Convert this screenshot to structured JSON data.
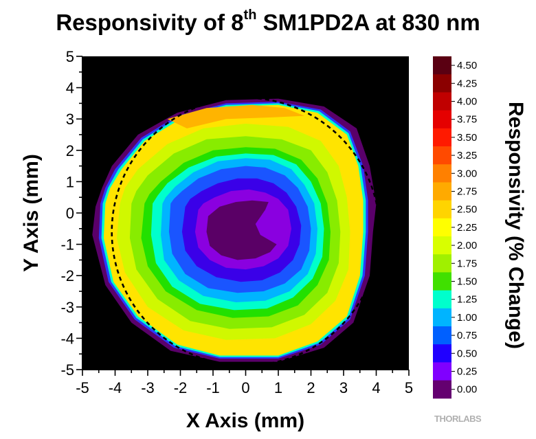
{
  "chart_data": {
    "type": "heatmap",
    "title": {
      "prefix": "Responsivity of 8",
      "sup": "th",
      "suffix": " SM1PD2A at 830 nm"
    },
    "xlabel": "X Axis (mm)",
    "ylabel": "Y Axis (mm)",
    "colorbar_label": "Responsivity (% Change)",
    "xlim": [
      -5,
      5
    ],
    "ylim": [
      -5,
      5
    ],
    "x_ticks": [
      "-5",
      "-4",
      "-3",
      "-2",
      "-1",
      "0",
      "1",
      "2",
      "3",
      "4",
      "5"
    ],
    "y_ticks": [
      "5",
      "4",
      "3",
      "2",
      "1",
      "0",
      "-1",
      "-2",
      "-3",
      "-4",
      "-5"
    ],
    "colorbar_ticks": [
      "4.50",
      "4.25",
      "4.00",
      "3.75",
      "3.50",
      "3.25",
      "3.00",
      "2.75",
      "2.50",
      "2.25",
      "2.00",
      "1.75",
      "1.50",
      "1.25",
      "1.00",
      "0.75",
      "0.50",
      "0.25",
      "0.00"
    ],
    "colorbar_colors": [
      "#5a0012",
      "#8b0000",
      "#c00000",
      "#e50000",
      "#ff1a00",
      "#ff4a00",
      "#ff8000",
      "#ffaa00",
      "#ffd400",
      "#ffff00",
      "#d8ff00",
      "#a0f000",
      "#40e000",
      "#00ffcc",
      "#00b4ff",
      "#0060ff",
      "#2000ff",
      "#8000ff",
      "#640070"
    ],
    "levels_mm": [
      {
        "value": 0.0,
        "color": "#5a006a",
        "points": [
          [
            -4.6,
            0.2
          ],
          [
            -4.7,
            -0.7
          ],
          [
            -4.3,
            -2.3
          ],
          [
            -3.5,
            -3.5
          ],
          [
            -2.3,
            -4.4
          ],
          [
            -0.8,
            -4.75
          ],
          [
            1.0,
            -4.75
          ],
          [
            2.4,
            -4.3
          ],
          [
            3.3,
            -3.5
          ],
          [
            3.8,
            -2.0
          ],
          [
            3.9,
            -0.6
          ],
          [
            4.0,
            0.3
          ],
          [
            3.8,
            1.5
          ],
          [
            3.4,
            2.7
          ],
          [
            2.4,
            3.4
          ],
          [
            1.0,
            3.65
          ],
          [
            -0.6,
            3.6
          ],
          [
            -2.1,
            3.2
          ],
          [
            -3.3,
            2.5
          ],
          [
            -4.1,
            1.5
          ],
          [
            -4.4,
            0.8
          ]
        ]
      },
      {
        "value": 0.5,
        "color": "#2a3aff",
        "points": [
          [
            -4.45,
            0.3
          ],
          [
            -4.5,
            -0.8
          ],
          [
            -4.2,
            -2.2
          ],
          [
            -3.4,
            -3.4
          ],
          [
            -2.2,
            -4.3
          ],
          [
            -0.8,
            -4.65
          ],
          [
            1.0,
            -4.65
          ],
          [
            2.3,
            -4.2
          ],
          [
            3.2,
            -3.4
          ],
          [
            3.65,
            -2.0
          ],
          [
            3.75,
            -0.6
          ],
          [
            3.75,
            0.4
          ],
          [
            3.6,
            1.5
          ],
          [
            3.2,
            2.6
          ],
          [
            2.3,
            3.3
          ],
          [
            1.0,
            3.55
          ],
          [
            -0.6,
            3.5
          ],
          [
            -2.1,
            3.1
          ],
          [
            -3.2,
            2.4
          ],
          [
            -4.0,
            1.4
          ],
          [
            -4.3,
            0.8
          ]
        ]
      },
      {
        "value": 1.25,
        "color": "#00ffcc",
        "points": [
          [
            -4.38,
            0.3
          ],
          [
            -4.42,
            -0.8
          ],
          [
            -4.12,
            -2.2
          ],
          [
            -3.35,
            -3.35
          ],
          [
            -2.15,
            -4.25
          ],
          [
            -0.8,
            -4.6
          ],
          [
            1.0,
            -4.6
          ],
          [
            2.25,
            -4.15
          ],
          [
            3.15,
            -3.35
          ],
          [
            3.58,
            -2.0
          ],
          [
            3.68,
            -0.6
          ],
          [
            3.68,
            0.4
          ],
          [
            3.52,
            1.5
          ],
          [
            3.15,
            2.55
          ],
          [
            2.25,
            3.25
          ],
          [
            1.0,
            3.5
          ],
          [
            -0.6,
            3.45
          ],
          [
            -2.05,
            3.05
          ],
          [
            -3.15,
            2.35
          ],
          [
            -3.9,
            1.4
          ],
          [
            -4.22,
            0.8
          ]
        ]
      },
      {
        "value": 2.25,
        "color": "#ffe400",
        "points": [
          [
            -4.3,
            0.3
          ],
          [
            -4.35,
            -0.8
          ],
          [
            -4.05,
            -2.2
          ],
          [
            -3.3,
            -3.3
          ],
          [
            -2.1,
            -4.2
          ],
          [
            -0.8,
            -4.55
          ],
          [
            1.0,
            -4.55
          ],
          [
            2.2,
            -4.1
          ],
          [
            3.1,
            -3.3
          ],
          [
            3.5,
            -2.0
          ],
          [
            3.6,
            -0.6
          ],
          [
            3.6,
            0.4
          ],
          [
            3.45,
            1.5
          ],
          [
            3.1,
            2.5
          ],
          [
            2.2,
            3.2
          ],
          [
            1.0,
            3.45
          ],
          [
            -0.6,
            3.4
          ],
          [
            -2.0,
            3.0
          ],
          [
            -3.1,
            2.3
          ],
          [
            -3.8,
            1.4
          ],
          [
            -4.15,
            0.8
          ]
        ]
      },
      {
        "value": 2.75,
        "color": "#ffb400",
        "points": [
          [
            -2.4,
            3.0
          ],
          [
            -1.2,
            3.35
          ],
          [
            0.2,
            3.45
          ],
          [
            1.2,
            3.35
          ],
          [
            1.8,
            3.1
          ],
          [
            0.8,
            3.05
          ],
          [
            -0.6,
            3.0
          ],
          [
            -1.8,
            2.7
          ]
        ]
      },
      {
        "value": 2.0,
        "color": "#d0f800",
        "points": [
          [
            -3.85,
            0.3
          ],
          [
            -3.95,
            -0.8
          ],
          [
            -3.7,
            -1.9
          ],
          [
            -3.0,
            -3.0
          ],
          [
            -1.9,
            -3.75
          ],
          [
            -0.6,
            -4.05
          ],
          [
            0.9,
            -4.0
          ],
          [
            2.0,
            -3.55
          ],
          [
            2.75,
            -2.8
          ],
          [
            3.15,
            -1.8
          ],
          [
            3.2,
            -0.6
          ],
          [
            3.1,
            0.5
          ],
          [
            2.85,
            1.5
          ],
          [
            2.3,
            2.3
          ],
          [
            1.3,
            2.75
          ],
          [
            0.0,
            2.85
          ],
          [
            -1.3,
            2.7
          ],
          [
            -2.4,
            2.2
          ],
          [
            -3.3,
            1.4
          ],
          [
            -3.7,
            0.8
          ]
        ]
      },
      {
        "value": 1.75,
        "color": "#88ec00",
        "points": [
          [
            -3.5,
            0.3
          ],
          [
            -3.55,
            -0.8
          ],
          [
            -3.35,
            -1.8
          ],
          [
            -2.7,
            -2.75
          ],
          [
            -1.7,
            -3.45
          ],
          [
            -0.5,
            -3.7
          ],
          [
            0.8,
            -3.65
          ],
          [
            1.8,
            -3.25
          ],
          [
            2.5,
            -2.55
          ],
          [
            2.85,
            -1.6
          ],
          [
            2.9,
            -0.6
          ],
          [
            2.8,
            0.4
          ],
          [
            2.5,
            1.3
          ],
          [
            2.0,
            2.0
          ],
          [
            1.1,
            2.35
          ],
          [
            0.0,
            2.45
          ],
          [
            -1.2,
            2.35
          ],
          [
            -2.2,
            1.9
          ],
          [
            -3.0,
            1.2
          ],
          [
            -3.35,
            0.7
          ]
        ]
      },
      {
        "value": 1.5,
        "color": "#22e000",
        "points": [
          [
            -3.1,
            0.3
          ],
          [
            -3.2,
            -0.8
          ],
          [
            -3.0,
            -1.7
          ],
          [
            -2.45,
            -2.5
          ],
          [
            -1.5,
            -3.1
          ],
          [
            -0.4,
            -3.35
          ],
          [
            0.7,
            -3.3
          ],
          [
            1.6,
            -2.95
          ],
          [
            2.2,
            -2.3
          ],
          [
            2.55,
            -1.5
          ],
          [
            2.6,
            -0.6
          ],
          [
            2.5,
            0.3
          ],
          [
            2.2,
            1.1
          ],
          [
            1.7,
            1.7
          ],
          [
            0.9,
            2.05
          ],
          [
            0.0,
            2.1
          ],
          [
            -1.0,
            2.0
          ],
          [
            -1.9,
            1.6
          ],
          [
            -2.6,
            1.0
          ],
          [
            -2.95,
            0.6
          ]
        ]
      },
      {
        "value": 1.25,
        "color": "#00ffcc",
        "points": [
          [
            -2.85,
            0.3
          ],
          [
            -2.9,
            -0.7
          ],
          [
            -2.75,
            -1.6
          ],
          [
            -2.25,
            -2.35
          ],
          [
            -1.4,
            -2.9
          ],
          [
            -0.35,
            -3.1
          ],
          [
            0.65,
            -3.05
          ],
          [
            1.45,
            -2.7
          ],
          [
            2.05,
            -2.1
          ],
          [
            2.35,
            -1.4
          ],
          [
            2.4,
            -0.5
          ],
          [
            2.3,
            0.3
          ],
          [
            2.0,
            1.0
          ],
          [
            1.55,
            1.55
          ],
          [
            0.85,
            1.85
          ],
          [
            0.0,
            1.9
          ],
          [
            -0.9,
            1.8
          ],
          [
            -1.75,
            1.45
          ],
          [
            -2.4,
            0.95
          ],
          [
            -2.7,
            0.55
          ]
        ]
      },
      {
        "value": 1.0,
        "color": "#00b4ff",
        "points": [
          [
            -2.55,
            0.3
          ],
          [
            -2.6,
            -0.7
          ],
          [
            -2.5,
            -1.5
          ],
          [
            -2.05,
            -2.15
          ],
          [
            -1.3,
            -2.65
          ],
          [
            -0.3,
            -2.85
          ],
          [
            0.6,
            -2.8
          ],
          [
            1.35,
            -2.5
          ],
          [
            1.9,
            -1.95
          ],
          [
            2.15,
            -1.3
          ],
          [
            2.2,
            -0.5
          ],
          [
            2.1,
            0.3
          ],
          [
            1.8,
            0.9
          ],
          [
            1.4,
            1.4
          ],
          [
            0.75,
            1.7
          ],
          [
            0.0,
            1.75
          ],
          [
            -0.85,
            1.65
          ],
          [
            -1.6,
            1.3
          ],
          [
            -2.15,
            0.85
          ],
          [
            -2.45,
            0.5
          ]
        ]
      },
      {
        "value": 0.75,
        "color": "#1a55ff",
        "points": [
          [
            -2.3,
            0.3
          ],
          [
            -2.35,
            -0.6
          ],
          [
            -2.25,
            -1.3
          ],
          [
            -1.85,
            -1.95
          ],
          [
            -1.15,
            -2.4
          ],
          [
            -0.25,
            -2.55
          ],
          [
            0.55,
            -2.5
          ],
          [
            1.2,
            -2.25
          ],
          [
            1.7,
            -1.8
          ],
          [
            1.95,
            -1.2
          ],
          [
            2.0,
            -0.5
          ],
          [
            1.9,
            0.2
          ],
          [
            1.6,
            0.8
          ],
          [
            1.2,
            1.2
          ],
          [
            0.6,
            1.45
          ],
          [
            0.0,
            1.5
          ],
          [
            -0.75,
            1.4
          ],
          [
            -1.45,
            1.1
          ],
          [
            -1.95,
            0.7
          ],
          [
            -2.2,
            0.45
          ]
        ]
      },
      {
        "value": 0.5,
        "color": "#3a00e8",
        "points": [
          [
            -1.85,
            0.2
          ],
          [
            -1.95,
            -0.6
          ],
          [
            -1.85,
            -1.2
          ],
          [
            -1.5,
            -1.7
          ],
          [
            -0.9,
            -2.05
          ],
          [
            -0.15,
            -2.2
          ],
          [
            0.5,
            -2.15
          ],
          [
            1.05,
            -1.9
          ],
          [
            1.45,
            -1.5
          ],
          [
            1.65,
            -1.0
          ],
          [
            1.7,
            -0.4
          ],
          [
            1.55,
            0.2
          ],
          [
            1.25,
            0.65
          ],
          [
            0.85,
            0.95
          ],
          [
            0.35,
            1.1
          ],
          [
            -0.25,
            1.1
          ],
          [
            -0.85,
            0.95
          ],
          [
            -1.35,
            0.7
          ],
          [
            -1.7,
            0.45
          ]
        ]
      },
      {
        "value": 0.25,
        "color": "#8a00e0",
        "points": [
          [
            -1.45,
            0.1
          ],
          [
            -1.55,
            -0.6
          ],
          [
            -1.45,
            -1.1
          ],
          [
            -1.1,
            -1.5
          ],
          [
            -0.6,
            -1.75
          ],
          [
            0.0,
            -1.8
          ],
          [
            0.55,
            -1.7
          ],
          [
            1.0,
            -1.45
          ],
          [
            1.3,
            -1.05
          ],
          [
            1.4,
            -0.5
          ],
          [
            1.3,
            0.1
          ],
          [
            1.0,
            0.45
          ],
          [
            0.6,
            0.65
          ],
          [
            0.1,
            0.75
          ],
          [
            -0.45,
            0.7
          ],
          [
            -0.95,
            0.5
          ],
          [
            -1.3,
            0.3
          ]
        ]
      },
      {
        "value": 0.0,
        "color": "#5a0066",
        "points": [
          [
            -1.15,
            -0.1
          ],
          [
            -1.2,
            -0.6
          ],
          [
            -1.1,
            -1.05
          ],
          [
            -0.75,
            -1.35
          ],
          [
            -0.25,
            -1.5
          ],
          [
            0.3,
            -1.45
          ],
          [
            0.75,
            -1.25
          ],
          [
            0.95,
            -1.0
          ],
          [
            0.45,
            -0.7
          ],
          [
            0.3,
            -0.35
          ],
          [
            0.6,
            0.1
          ],
          [
            0.7,
            0.35
          ],
          [
            0.2,
            0.4
          ],
          [
            -0.3,
            0.35
          ],
          [
            -0.8,
            0.2
          ]
        ]
      }
    ],
    "reference_circle_mm": {
      "cx": 0.0,
      "cy": -0.6,
      "r": 4.1
    }
  },
  "logo": "THORLABS"
}
